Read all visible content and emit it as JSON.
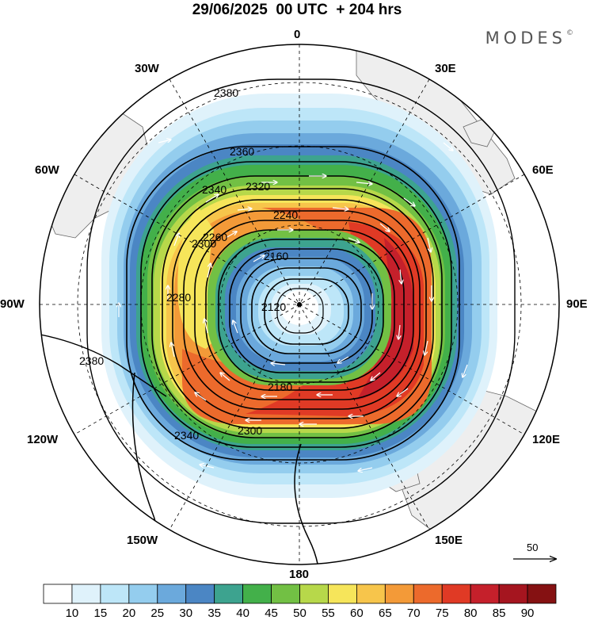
{
  "header": {
    "title": "29/06/2025  00 UTC  + 204 hrs",
    "brand": "MODES",
    "brand_mark": "©"
  },
  "map": {
    "projection": "south polar stereographic",
    "longitude_labels": {
      "top": "0",
      "top_right": "30E",
      "upper_right": "60E",
      "right": "90E",
      "lower_right": "120E",
      "bottom_right": "150E",
      "bottom": "180",
      "bottom_left": "150W",
      "lower_left": "120W",
      "left": "90W",
      "upper_left": "60W",
      "top_left": "30W"
    },
    "contour_labels": [
      "2380",
      "2360",
      "2340",
      "2320",
      "2300",
      "2280",
      "2260",
      "2240",
      "2180",
      "2160",
      "2120",
      "2380",
      "2340",
      "2300"
    ],
    "colors": {
      "land": "#eeeeee",
      "contour": "#000000",
      "wind_arrow": "#ffffff"
    }
  },
  "vector_scale": {
    "label": "50"
  },
  "colorbar": {
    "ticks": [
      "10",
      "15",
      "20",
      "25",
      "30",
      "35",
      "40",
      "45",
      "50",
      "55",
      "60",
      "65",
      "70",
      "75",
      "80",
      "85",
      "90"
    ],
    "colors": [
      "#ffffff",
      "#dff2fb",
      "#bde6f8",
      "#94cdee",
      "#6ba9dc",
      "#4b86c4",
      "#3da38f",
      "#43b04a",
      "#72c044",
      "#b7d84a",
      "#f6e55a",
      "#f7c54b",
      "#f39a38",
      "#ec6a2c",
      "#e03a25",
      "#c5202b",
      "#a5151f",
      "#851112"
    ]
  }
}
